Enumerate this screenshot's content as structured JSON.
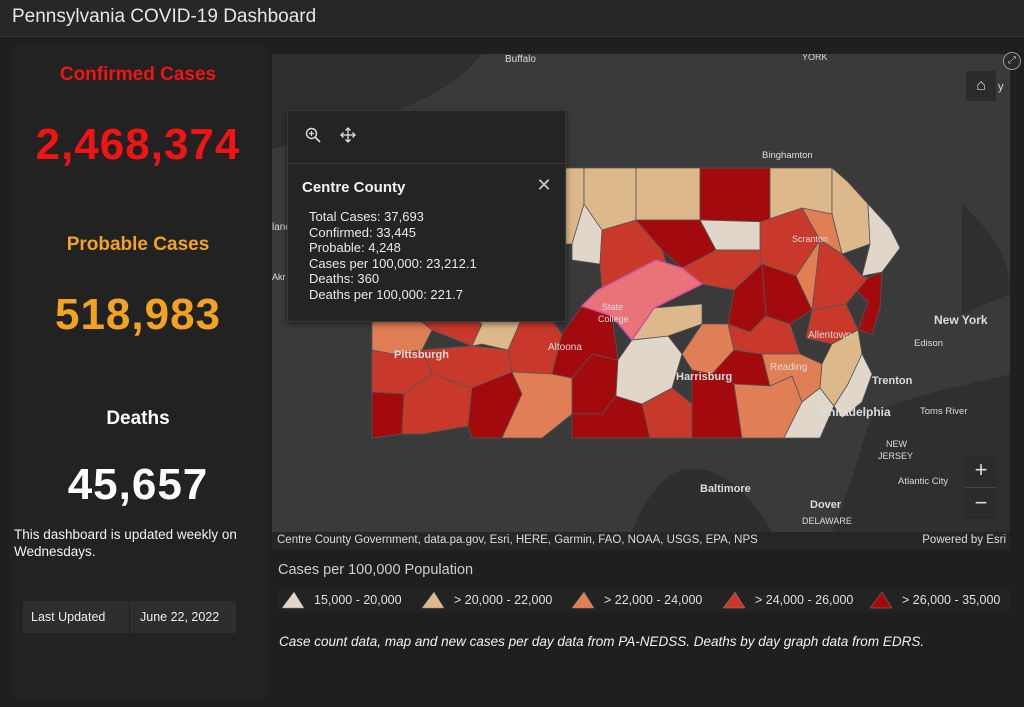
{
  "header": {
    "title": "Pennsylvania COVID-19 Dashboard"
  },
  "stats": {
    "confirmed_label": "Confirmed Cases",
    "confirmed_value": "2,468,374",
    "probable_label": "Probable Cases",
    "probable_value": "518,983",
    "deaths_label": "Deaths",
    "deaths_value": "45,657"
  },
  "note": "This dashboard is updated weekly on Wednesdays.",
  "last_updated": {
    "label": "Last Updated",
    "value": "June 22, 2022"
  },
  "map": {
    "labels": {
      "buffalo": "Buffalo",
      "york_state": "YORK",
      "binghamton": "Binghamton",
      "new_york": "New York",
      "edison": "Edison",
      "trenton": "Trenton",
      "toms_river": "Toms River",
      "new_jersey_1": "NEW",
      "new_jersey_2": "JERSEY",
      "atlantic_city": "Atlantic City",
      "baltimore": "Baltimore",
      "dover": "Dover",
      "delaware": "DELAWARE",
      "pittsburgh": "Pittsburgh",
      "altoona": "Altoona",
      "state_college_1": "State",
      "state_college_2": "College",
      "harrisburg": "Harrisburg",
      "reading": "Reading",
      "allentown": "Allentown",
      "philadelphia": "Philadelphia",
      "scranton": "Scranton",
      "cleveland_partial": "land",
      "akron_partial": "Akr",
      "edge_partial": "y"
    },
    "attribution": "Centre County Government, data.pa.gov, Esri, HERE, Garmin, FAO, NOAA, USGS, EPA, NPS",
    "powered_by": "Powered by Esri",
    "home_icon": "home-icon",
    "zoom_in_label": "+",
    "zoom_out_label": "−",
    "colors": {
      "c1": "#e0d6c9",
      "c2": "#ddb88a",
      "c3": "#e07e55",
      "c4": "#c8382b",
      "c5": "#a20a0d",
      "selected": "#e8747a"
    }
  },
  "popup": {
    "title": "Centre County",
    "rows": [
      "Total Cases: 37,693",
      "Confirmed: 33,445",
      "Probable: 4,248",
      "Cases per 100,000: 23,212.1",
      "Deaths: 360",
      "Deaths per 100,000: 221.7"
    ]
  },
  "legend": {
    "title": "Cases per 100,000 Population",
    "items": [
      {
        "label": "15,000 - 20,000",
        "color": "#e0d6c9"
      },
      {
        "label": "> 20,000 - 22,000",
        "color": "#ddb88a"
      },
      {
        "label": "> 22,000 - 24,000",
        "color": "#e07e55"
      },
      {
        "label": "> 24,000 - 26,000",
        "color": "#c8382b"
      },
      {
        "label": "> 26,000 - 35,000",
        "color": "#a20a0d"
      }
    ]
  },
  "footnote": "Case count data, map and new cases per day data from PA-NEDSS.  Deaths by day graph data from EDRS."
}
